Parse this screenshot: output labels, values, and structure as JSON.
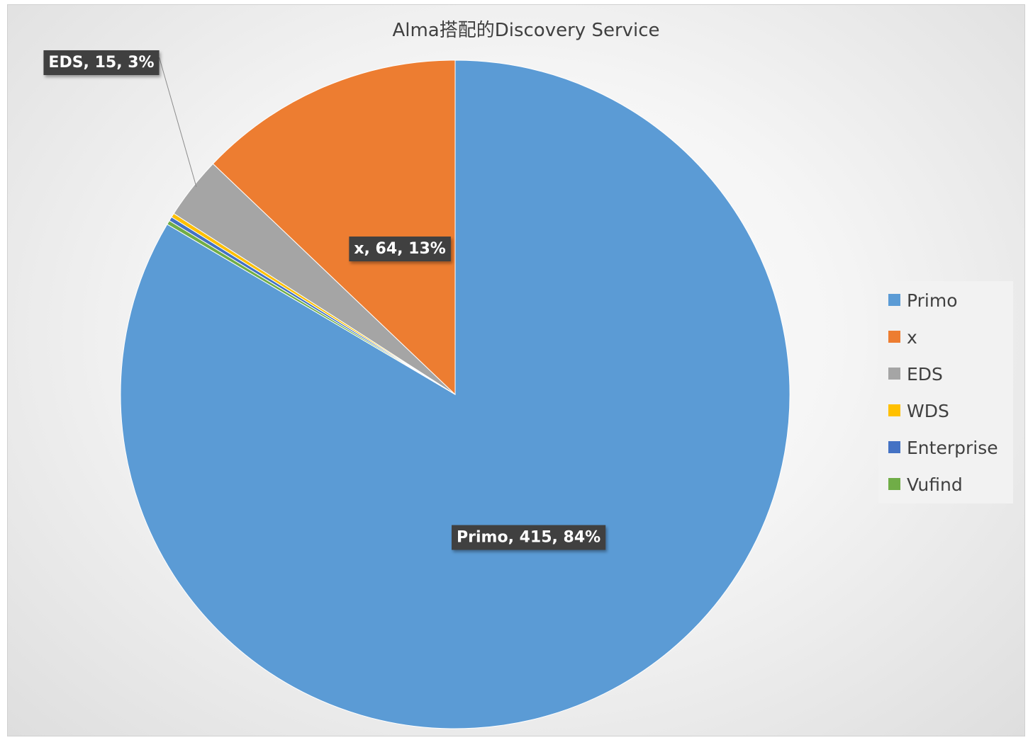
{
  "chart_data": {
    "type": "pie",
    "title": "Alma搭配的Discovery Service",
    "start_angle_deg": 0,
    "direction": "clockwise",
    "slices": [
      {
        "label": "Primo",
        "value": 415,
        "percent_label": "84%",
        "color": "#5b9bd5",
        "data_label": "Primo, 415, 84%"
      },
      {
        "label": "Vufind",
        "value": 1,
        "percent_label": "",
        "color": "#70ad47",
        "data_label": ""
      },
      {
        "label": "Enterprise",
        "value": 1,
        "percent_label": "",
        "color": "#4472c4",
        "data_label": ""
      },
      {
        "label": "WDS",
        "value": 1,
        "percent_label": "",
        "color": "#ffc000",
        "data_label": ""
      },
      {
        "label": "EDS",
        "value": 15,
        "percent_label": "3%",
        "color": "#a5a5a5",
        "data_label": "EDS, 15, 3%"
      },
      {
        "label": "x",
        "value": 64,
        "percent_label": "13%",
        "color": "#ed7d31",
        "data_label": "x, 64, 13%"
      }
    ],
    "legend": {
      "position": "right",
      "order": [
        "Primo",
        "x",
        "EDS",
        "WDS",
        "Enterprise",
        "Vufind"
      ]
    },
    "label_style": {
      "background": "#404040",
      "text_color": "#ffffff"
    }
  }
}
